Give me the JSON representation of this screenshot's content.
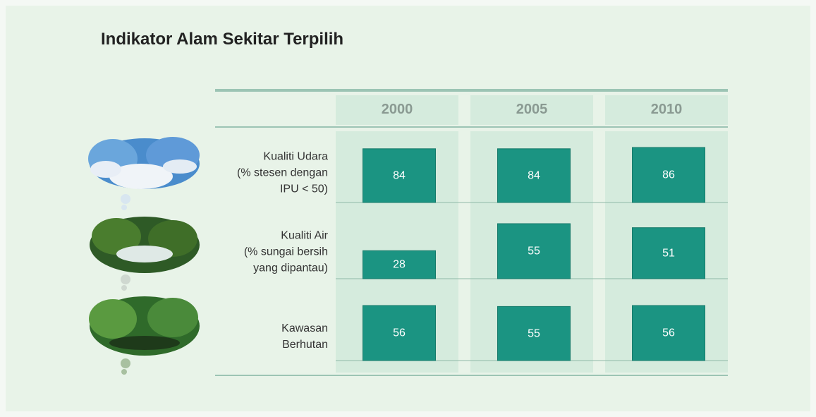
{
  "chart_data": {
    "type": "bar",
    "title": "Indikator Alam Sekitar Terpilih",
    "categories": [
      "2000",
      "2005",
      "2010"
    ],
    "color": "#1b9482",
    "series": [
      {
        "name": "Kualiti Udara\n(% stesen dengan\nIPU < 50)",
        "values": [
          84,
          84,
          86
        ]
      },
      {
        "name": "Kualiti Air\n(% sungai bersih\nyang dipantau)",
        "values": [
          28,
          55,
          51
        ]
      },
      {
        "name": "Kawasan\nBerhutan",
        "values": [
          56,
          55,
          56
        ]
      }
    ]
  }
}
